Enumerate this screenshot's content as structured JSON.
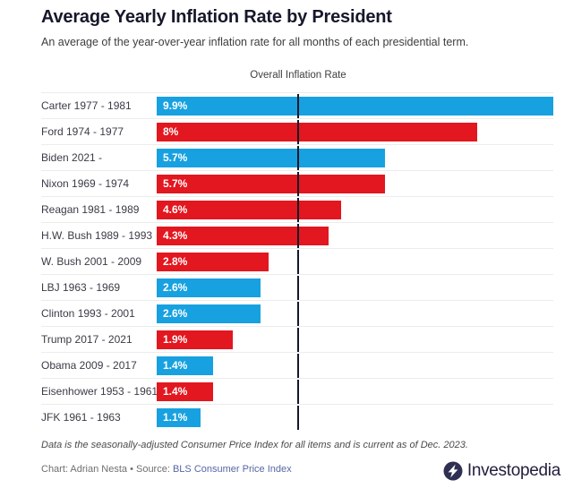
{
  "header": {
    "title": "Average Yearly Inflation Rate by President",
    "subtitle": "An average of the year-over-year inflation rate for all months of each presidential term."
  },
  "chart_data": {
    "type": "bar",
    "orientation": "horizontal",
    "title": "Average Yearly Inflation Rate by President",
    "categories": [
      "Carter 1977 - 1981",
      "Ford 1974 - 1977",
      "Biden 2021 -",
      "Nixon 1969 - 1974",
      "Reagan 1981 - 1989",
      "H.W. Bush 1989 - 1993",
      "W. Bush 2001 - 2009",
      "LBJ 1963 - 1969",
      "Clinton 1993 - 2001",
      "Trump 2017 - 2021",
      "Obama 2009 - 2017",
      "Eisenhower 1953 - 1961",
      "JFK 1961 - 1963"
    ],
    "values": [
      9.9,
      8,
      5.7,
      5.7,
      4.6,
      4.3,
      2.8,
      2.6,
      2.6,
      1.9,
      1.4,
      1.4,
      1.1
    ],
    "value_labels": [
      "9.9%",
      "8%",
      "5.7%",
      "5.7%",
      "4.6%",
      "4.3%",
      "2.8%",
      "2.6%",
      "2.6%",
      "1.9%",
      "1.4%",
      "1.4%",
      "1.1%"
    ],
    "colors": [
      "#18a1e0",
      "#e2171f",
      "#18a1e0",
      "#e2171f",
      "#e2171f",
      "#e2171f",
      "#e2171f",
      "#18a1e0",
      "#18a1e0",
      "#e2171f",
      "#18a1e0",
      "#e2171f",
      "#18a1e0"
    ],
    "palette": {
      "democrat_blue": "#18a1e0",
      "republican_red": "#e2171f"
    },
    "annotation": {
      "label": "Overall Inflation Rate",
      "value_estimate": 3.5
    },
    "xlim": [
      0,
      9.9
    ],
    "grid": false,
    "legend": false
  },
  "footer": {
    "note": "Data is the seasonally-adjusted Consumer Price Index for all items and is current as of Dec. 2023.",
    "credit": "Chart: Adrian Nesta",
    "separator": "•",
    "source_label": "Source:",
    "source_link_text": "BLS Consumer Price Index",
    "brand": "Investopedia"
  }
}
